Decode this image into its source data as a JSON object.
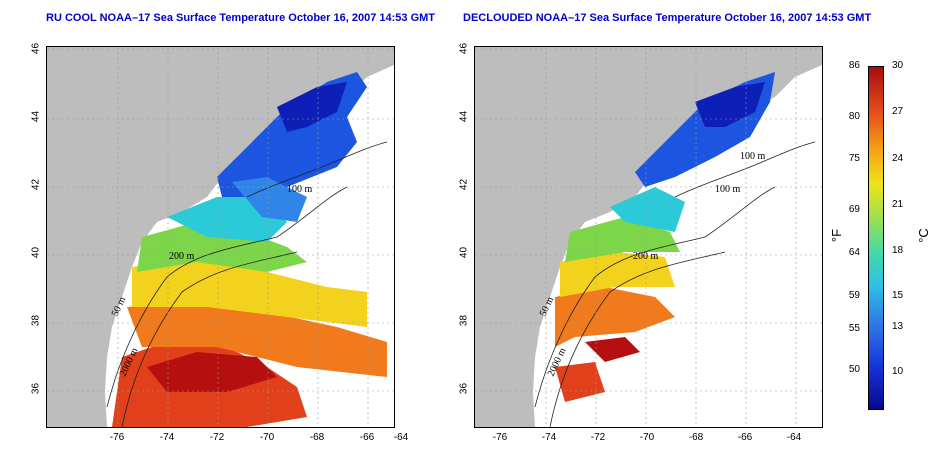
{
  "title_left": "RU COOL NOAA–17 Sea Surface Temperature October 16, 2007 14:53 GMT",
  "title_right": "DECLOUDED NOAA–17 Sea Surface Temperature October 16, 2007 14:53 GMT",
  "lat_ticks": [
    "46",
    "44",
    "42",
    "40",
    "38",
    "36"
  ],
  "lon_ticks": [
    "-76",
    "-74",
    "-72",
    "-70",
    "-68",
    "-66",
    "-64"
  ],
  "contour_labels": {
    "c200": "200 m",
    "c100": "100 m",
    "c50": "50 m",
    "c2000": "2000 m"
  },
  "colorbar": {
    "f_label": "°F",
    "c_label": "°C",
    "f_ticks": [
      "86",
      "80",
      "75",
      "69",
      "64",
      "59",
      "55",
      "50"
    ],
    "c_ticks": [
      "30",
      "27",
      "24",
      "21",
      "18",
      "15",
      "13",
      "10"
    ],
    "colors": {
      "low": "#08088f",
      "mid": "#45d9a8",
      "high": "#a70d0d"
    }
  },
  "colors": {
    "land": "#bdbdbd",
    "title": "#0000cc"
  }
}
